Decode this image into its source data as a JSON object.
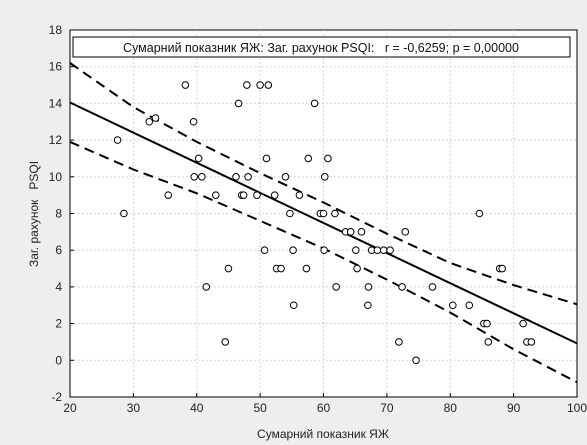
{
  "chart_data": {
    "type": "scatter",
    "title": "Сумарний показник ЯЖ: Заг. рахунок PSQI:   r = -0,6259; p = 0,00000",
    "xlabel": "Сумарний показник ЯЖ",
    "ylabel": "Заг. рахунок   PSQI",
    "xlim": [
      20,
      100
    ],
    "ylim": [
      -2,
      18
    ],
    "x_ticks": [
      "20",
      "30",
      "40",
      "50",
      "60",
      "70",
      "80",
      "90",
      "100"
    ],
    "y_ticks": [
      "-2",
      "0",
      "2",
      "4",
      "6",
      "8",
      "10",
      "12",
      "14",
      "16",
      "18"
    ],
    "grid": true,
    "regression": {
      "fit": [
        [
          20,
          14.05
        ],
        [
          100,
          0.92
        ]
      ],
      "upper_ci": [
        [
          20,
          16.2
        ],
        [
          30,
          13.8
        ],
        [
          40,
          11.9
        ],
        [
          50,
          10.2
        ],
        [
          60,
          8.6
        ],
        [
          70,
          6.9
        ],
        [
          80,
          5.3
        ],
        [
          90,
          4.1
        ],
        [
          100,
          3.05
        ]
      ],
      "lower_ci": [
        [
          20,
          11.9
        ],
        [
          30,
          10.4
        ],
        [
          40,
          9.1
        ],
        [
          50,
          7.6
        ],
        [
          60,
          6.1
        ],
        [
          70,
          4.4
        ],
        [
          80,
          2.6
        ],
        [
          90,
          0.6
        ],
        [
          100,
          -1.2
        ]
      ]
    },
    "points": [
      [
        27.5,
        12
      ],
      [
        28.5,
        8
      ],
      [
        32.5,
        13
      ],
      [
        33.5,
        13.2
      ],
      [
        35.5,
        9
      ],
      [
        38.2,
        15
      ],
      [
        39.5,
        13
      ],
      [
        39.6,
        10
      ],
      [
        40.3,
        11
      ],
      [
        40.8,
        10
      ],
      [
        41.5,
        4
      ],
      [
        43,
        9
      ],
      [
        44.5,
        1
      ],
      [
        45,
        5
      ],
      [
        46.2,
        10
      ],
      [
        46.6,
        14
      ],
      [
        47.1,
        9
      ],
      [
        47.4,
        9
      ],
      [
        47.9,
        15
      ],
      [
        48.1,
        10
      ],
      [
        49.5,
        9
      ],
      [
        50,
        15
      ],
      [
        50.7,
        6
      ],
      [
        51,
        11
      ],
      [
        51.3,
        15
      ],
      [
        52.3,
        9
      ],
      [
        52.6,
        5
      ],
      [
        53.3,
        5
      ],
      [
        54,
        10
      ],
      [
        54.7,
        8
      ],
      [
        55.2,
        6
      ],
      [
        55.3,
        3
      ],
      [
        56.2,
        9
      ],
      [
        57.3,
        5
      ],
      [
        57.6,
        11
      ],
      [
        58.6,
        14
      ],
      [
        59.5,
        8
      ],
      [
        60,
        8
      ],
      [
        60.1,
        6
      ],
      [
        60.2,
        10
      ],
      [
        60.7,
        11
      ],
      [
        61.8,
        8
      ],
      [
        62,
        4
      ],
      [
        63.5,
        7
      ],
      [
        64.3,
        7
      ],
      [
        65.1,
        6
      ],
      [
        65.3,
        5
      ],
      [
        66,
        7
      ],
      [
        67,
        3
      ],
      [
        67.1,
        4
      ],
      [
        67.6,
        6
      ],
      [
        68.5,
        6
      ],
      [
        69.5,
        6
      ],
      [
        70.5,
        6
      ],
      [
        71.9,
        1
      ],
      [
        72.4,
        4
      ],
      [
        72.9,
        7
      ],
      [
        74.6,
        0
      ],
      [
        77.2,
        4
      ],
      [
        80.4,
        3
      ],
      [
        83,
        3
      ],
      [
        84.6,
        8
      ],
      [
        85.3,
        2
      ],
      [
        85.8,
        2
      ],
      [
        86,
        1
      ],
      [
        87.8,
        5
      ],
      [
        88.2,
        5
      ],
      [
        91.5,
        2
      ],
      [
        92.1,
        1
      ],
      [
        92.8,
        1
      ]
    ]
  }
}
